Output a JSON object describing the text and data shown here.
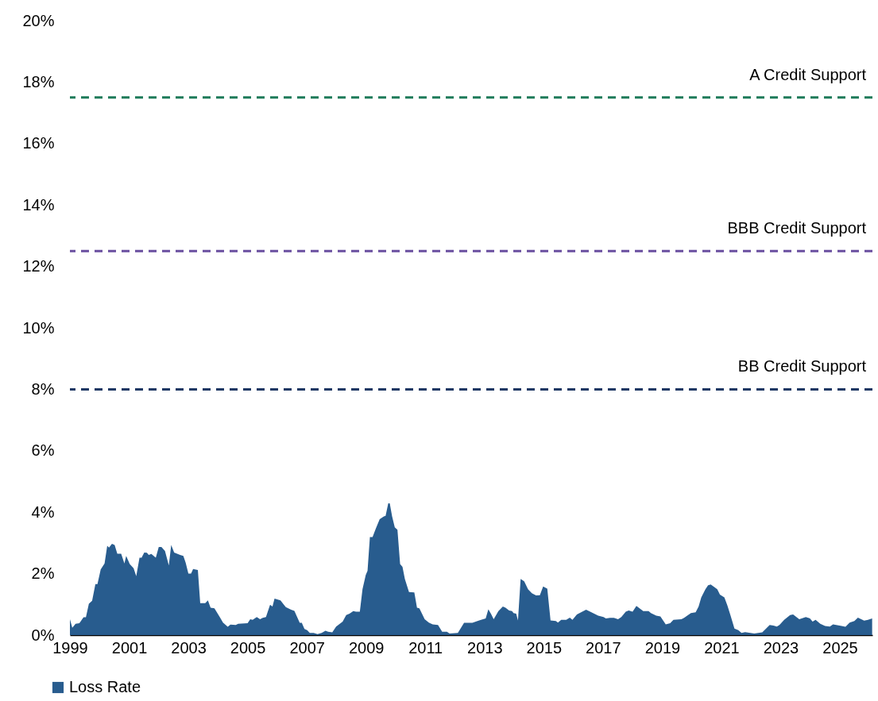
{
  "chart_data": {
    "type": "area",
    "legend": "bottom",
    "grid": false,
    "xlim": [
      1999,
      2026.1
    ],
    "xticks": [
      1999,
      2001,
      2003,
      2005,
      2007,
      2009,
      2011,
      2013,
      2015,
      2017,
      2019,
      2021,
      2023,
      2025
    ],
    "ylim": [
      0,
      20
    ],
    "yticks": [
      {
        "value": 0,
        "label": "0%"
      },
      {
        "value": 2,
        "label": "2%"
      },
      {
        "value": 4,
        "label": "4%"
      },
      {
        "value": 6,
        "label": "6%"
      },
      {
        "value": 8,
        "label": "8%"
      },
      {
        "value": 10,
        "label": "10%"
      },
      {
        "value": 12,
        "label": "12%"
      },
      {
        "value": 14,
        "label": "14%"
      },
      {
        "value": 16,
        "label": "16%"
      },
      {
        "value": 18,
        "label": "18%"
      },
      {
        "value": 20,
        "label": "20%"
      }
    ],
    "ref_lines": [
      {
        "axis": "y",
        "value": 17.5,
        "label": "A Credit Support",
        "color": "#1e7b5a",
        "line_style": "dashed"
      },
      {
        "axis": "y",
        "value": 12.5,
        "label": "BBB Credit Support",
        "color": "#6a4fa0",
        "line_style": "dashed"
      },
      {
        "axis": "y",
        "value": 8,
        "label": "BB Credit Support",
        "color": "#1f3864",
        "line_style": "dashed"
      }
    ],
    "series": [
      {
        "name": "Loss Rate",
        "color": "#285c8e",
        "x": [
          1999.0,
          1999.08,
          1999.19,
          1999.32,
          1999.46,
          1999.54,
          1999.64,
          1999.75,
          1999.86,
          1999.93,
          2000.04,
          2000.17,
          2000.26,
          2000.32,
          2000.42,
          2000.51,
          2000.6,
          2000.73,
          2000.84,
          2000.9,
          2001.02,
          2001.15,
          2001.24,
          2001.35,
          2001.42,
          2001.51,
          2001.6,
          2001.66,
          2001.75,
          2001.9,
          2002.0,
          2002.09,
          2002.21,
          2002.34,
          2002.42,
          2002.52,
          2002.72,
          2002.83,
          2002.91,
          2003.0,
          2003.09,
          2003.16,
          2003.32,
          2003.4,
          2003.57,
          2003.66,
          2003.75,
          2003.88,
          2004.06,
          2004.17,
          2004.33,
          2004.42,
          2004.6,
          2004.68,
          2005.0,
          2005.09,
          2005.17,
          2005.31,
          2005.42,
          2005.51,
          2005.62,
          2005.76,
          2005.84,
          2005.91,
          2006.11,
          2006.29,
          2006.47,
          2006.58,
          2006.76,
          2006.83,
          2006.92,
          2007.01,
          2007.1,
          2007.23,
          2007.36,
          2007.5,
          2007.63,
          2007.72,
          2007.86,
          2007.99,
          2008.21,
          2008.33,
          2008.44,
          2008.57,
          2008.66,
          2008.79,
          2008.88,
          2008.99,
          2009.05,
          2009.13,
          2009.22,
          2009.33,
          2009.46,
          2009.6,
          2009.66,
          2009.75,
          2009.8,
          2009.88,
          2009.97,
          2010.06,
          2010.15,
          2010.23,
          2010.31,
          2010.45,
          2010.63,
          2010.72,
          2010.8,
          2010.98,
          2011.12,
          2011.25,
          2011.43,
          2011.57,
          2011.73,
          2011.82,
          2012.1,
          2012.31,
          2012.59,
          2012.82,
          2012.95,
          2013.04,
          2013.13,
          2013.22,
          2013.31,
          2013.47,
          2013.62,
          2013.71,
          2013.83,
          2013.93,
          2013.98,
          2014.07,
          2014.13,
          2014.22,
          2014.34,
          2014.47,
          2014.6,
          2014.74,
          2014.87,
          2014.98,
          2015.12,
          2015.23,
          2015.41,
          2015.48,
          2015.59,
          2015.76,
          2015.88,
          2015.97,
          2016.12,
          2016.3,
          2016.43,
          2016.57,
          2016.84,
          2017.02,
          2017.1,
          2017.24,
          2017.37,
          2017.51,
          2017.62,
          2017.77,
          2017.87,
          2018.0,
          2018.13,
          2018.36,
          2018.54,
          2018.62,
          2018.8,
          2018.94,
          2019.12,
          2019.27,
          2019.38,
          2019.65,
          2019.74,
          2019.97,
          2020.13,
          2020.23,
          2020.32,
          2020.46,
          2020.55,
          2020.64,
          2020.77,
          2020.86,
          2020.95,
          2021.1,
          2021.2,
          2021.31,
          2021.44,
          2021.57,
          2021.68,
          2021.8,
          2022.11,
          2022.38,
          2022.63,
          2022.76,
          2022.87,
          2022.96,
          2023.12,
          2023.32,
          2023.42,
          2023.63,
          2023.85,
          2023.99,
          2024.08,
          2024.18,
          2024.34,
          2024.5,
          2024.66,
          2024.77,
          2025.06,
          2025.19,
          2025.33,
          2025.49,
          2025.61,
          2025.82,
          2025.95,
          2026.09
        ],
        "values": [
          0.52,
          0.24,
          0.37,
          0.39,
          0.58,
          0.58,
          1.02,
          1.12,
          1.66,
          1.66,
          2.14,
          2.33,
          2.91,
          2.85,
          2.97,
          2.93,
          2.65,
          2.65,
          2.33,
          2.58,
          2.31,
          2.18,
          1.92,
          2.52,
          2.52,
          2.69,
          2.68,
          2.61,
          2.64,
          2.52,
          2.87,
          2.87,
          2.74,
          2.27,
          2.93,
          2.69,
          2.61,
          2.58,
          2.35,
          2.0,
          2.0,
          2.15,
          2.12,
          1.04,
          1.04,
          1.13,
          0.89,
          0.87,
          0.59,
          0.41,
          0.27,
          0.34,
          0.33,
          0.37,
          0.39,
          0.52,
          0.5,
          0.59,
          0.52,
          0.56,
          0.59,
          0.99,
          0.93,
          1.19,
          1.13,
          0.91,
          0.83,
          0.79,
          0.4,
          0.4,
          0.2,
          0.16,
          0.07,
          0.07,
          0.03,
          0.07,
          0.14,
          0.11,
          0.09,
          0.28,
          0.44,
          0.65,
          0.7,
          0.78,
          0.76,
          0.76,
          1.49,
          1.96,
          2.09,
          3.19,
          3.19,
          3.47,
          3.77,
          3.86,
          3.88,
          4.29,
          4.29,
          3.86,
          3.51,
          3.43,
          2.31,
          2.22,
          1.83,
          1.4,
          1.39,
          0.89,
          0.87,
          0.52,
          0.41,
          0.35,
          0.33,
          0.11,
          0.11,
          0.05,
          0.07,
          0.4,
          0.4,
          0.48,
          0.52,
          0.54,
          0.84,
          0.69,
          0.52,
          0.78,
          0.93,
          0.89,
          0.8,
          0.78,
          0.72,
          0.7,
          0.48,
          1.83,
          1.75,
          1.49,
          1.36,
          1.29,
          1.3,
          1.58,
          1.51,
          0.48,
          0.46,
          0.41,
          0.5,
          0.5,
          0.57,
          0.5,
          0.67,
          0.76,
          0.83,
          0.76,
          0.63,
          0.59,
          0.54,
          0.56,
          0.56,
          0.52,
          0.59,
          0.76,
          0.8,
          0.76,
          0.95,
          0.78,
          0.78,
          0.72,
          0.63,
          0.61,
          0.35,
          0.39,
          0.5,
          0.52,
          0.56,
          0.72,
          0.74,
          0.93,
          1.23,
          1.49,
          1.62,
          1.65,
          1.56,
          1.49,
          1.32,
          1.23,
          0.97,
          0.63,
          0.21,
          0.16,
          0.07,
          0.1,
          0.05,
          0.09,
          0.33,
          0.31,
          0.28,
          0.33,
          0.5,
          0.65,
          0.67,
          0.52,
          0.59,
          0.54,
          0.44,
          0.5,
          0.37,
          0.3,
          0.28,
          0.35,
          0.3,
          0.27,
          0.41,
          0.46,
          0.57,
          0.47,
          0.5,
          0.54
        ]
      }
    ]
  }
}
